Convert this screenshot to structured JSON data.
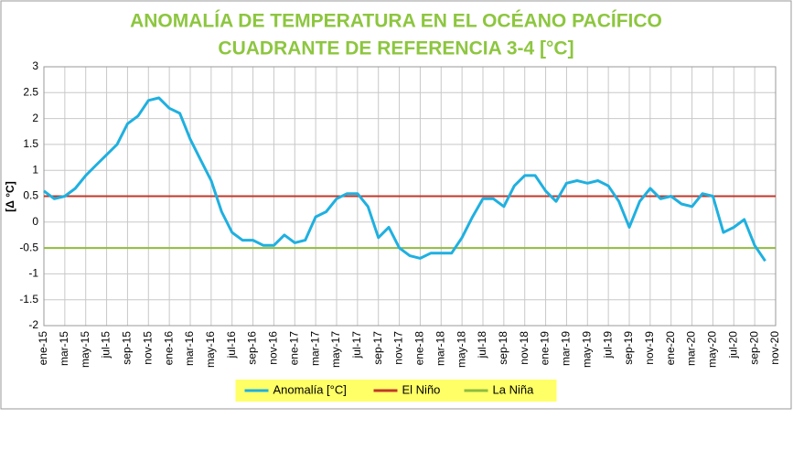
{
  "chart_data": {
    "type": "line",
    "title": "ANOMALÍA DE TEMPERATURA EN EL OCÉANO PACÍFICO",
    "subtitle": "CUADRANTE DE REFERENCIA 3-4 [°C]",
    "y_label": "[Δ °C]",
    "categories": [
      "ene-15",
      null,
      "mar-15",
      null,
      "may-15",
      null,
      "jul-15",
      null,
      "sep-15",
      null,
      "nov-15",
      null,
      "ene-16",
      null,
      "mar-16",
      null,
      "may-16",
      null,
      "jul-16",
      null,
      "sep-16",
      null,
      "nov-16",
      null,
      "ene-17",
      null,
      "mar-17",
      null,
      "may-17",
      null,
      "jul-17",
      null,
      "sep-17",
      null,
      "nov-17",
      null,
      "ene-18",
      null,
      "mar-18",
      null,
      "may-18",
      null,
      "jul-18",
      null,
      "sep-18",
      null,
      "nov-18",
      null,
      "ene-19",
      null,
      "mar-19",
      null,
      "may-19",
      null,
      "jul-19",
      null,
      "sep-19",
      null,
      "nov-19",
      null,
      "ene-20",
      null,
      "mar-20",
      null,
      "may-20",
      null,
      "jul-20",
      null,
      "sep-20",
      null,
      "nov-20"
    ],
    "series": [
      {
        "name": "Anomalía [°C]",
        "color": "#1fb0e0",
        "width": 3,
        "values": [
          0.6,
          0.45,
          0.5,
          0.65,
          0.9,
          1.1,
          1.3,
          1.5,
          1.9,
          2.05,
          2.35,
          2.4,
          2.2,
          2.1,
          1.6,
          1.2,
          0.8,
          0.2,
          -0.2,
          -0.35,
          -0.35,
          -0.45,
          -0.45,
          -0.25,
          -0.4,
          -0.35,
          0.1,
          0.2,
          0.45,
          0.55,
          0.55,
          0.3,
          -0.3,
          -0.1,
          -0.5,
          -0.65,
          -0.7,
          -0.6,
          -0.6,
          -0.6,
          -0.3,
          0.1,
          0.45,
          0.45,
          0.3,
          0.7,
          0.9,
          0.9,
          0.6,
          0.4,
          0.75,
          0.8,
          0.75,
          0.8,
          0.7,
          0.4,
          -0.1,
          0.4,
          0.65,
          0.45,
          0.5,
          0.35,
          0.3,
          0.55,
          0.5,
          -0.2,
          -0.1,
          0.05,
          -0.45,
          -0.75,
          null
        ]
      },
      {
        "name": "El Niño",
        "color": "#c0392b",
        "width": 2,
        "values": [
          0.5,
          0.5,
          0.5,
          0.5,
          0.5,
          0.5,
          0.5,
          0.5,
          0.5,
          0.5,
          0.5,
          0.5,
          0.5,
          0.5,
          0.5,
          0.5,
          0.5,
          0.5,
          0.5,
          0.5,
          0.5,
          0.5,
          0.5,
          0.5,
          0.5,
          0.5,
          0.5,
          0.5,
          0.5,
          0.5,
          0.5,
          0.5,
          0.5,
          0.5,
          0.5,
          0.5,
          0.5,
          0.5,
          0.5,
          0.5,
          0.5,
          0.5,
          0.5,
          0.5,
          0.5,
          0.5,
          0.5,
          0.5,
          0.5,
          0.5,
          0.5,
          0.5,
          0.5,
          0.5,
          0.5,
          0.5,
          0.5,
          0.5,
          0.5,
          0.5,
          0.5,
          0.5,
          0.5,
          0.5,
          0.5,
          0.5,
          0.5,
          0.5,
          0.5,
          0.5,
          0.5
        ]
      },
      {
        "name": "La Niña",
        "color": "#8fbc3f",
        "width": 2,
        "values": [
          -0.5,
          -0.5,
          -0.5,
          -0.5,
          -0.5,
          -0.5,
          -0.5,
          -0.5,
          -0.5,
          -0.5,
          -0.5,
          -0.5,
          -0.5,
          -0.5,
          -0.5,
          -0.5,
          -0.5,
          -0.5,
          -0.5,
          -0.5,
          -0.5,
          -0.5,
          -0.5,
          -0.5,
          -0.5,
          -0.5,
          -0.5,
          -0.5,
          -0.5,
          -0.5,
          -0.5,
          -0.5,
          -0.5,
          -0.5,
          -0.5,
          -0.5,
          -0.5,
          -0.5,
          -0.5,
          -0.5,
          -0.5,
          -0.5,
          -0.5,
          -0.5,
          -0.5,
          -0.5,
          -0.5,
          -0.5,
          -0.5,
          -0.5,
          -0.5,
          -0.5,
          -0.5,
          -0.5,
          -0.5,
          -0.5,
          -0.5,
          -0.5,
          -0.5,
          -0.5,
          -0.5,
          -0.5,
          -0.5,
          -0.5,
          -0.5,
          -0.5,
          -0.5,
          -0.5,
          -0.5,
          -0.5,
          -0.5
        ]
      }
    ],
    "ylim": [
      -2,
      3
    ],
    "yticks": [
      -2,
      -1.5,
      -1,
      -0.5,
      0,
      0.5,
      1,
      1.5,
      2,
      2.5,
      3
    ],
    "grid": true,
    "legend": "bottom",
    "title_color": "#8dc63f"
  }
}
